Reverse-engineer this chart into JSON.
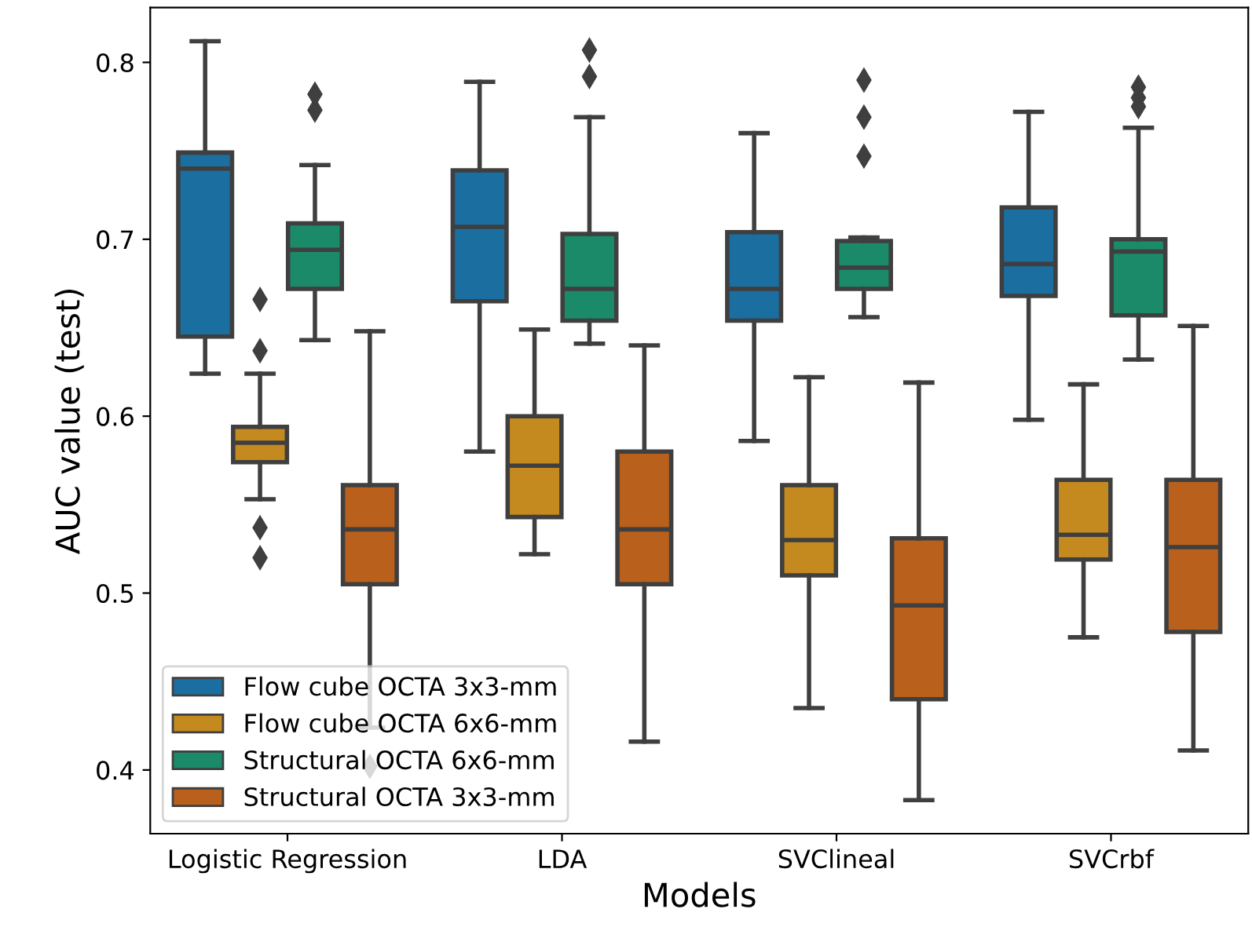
{
  "chart_data": {
    "type": "box",
    "xlabel": "Models",
    "ylabel": "AUC value (test)",
    "categories": [
      "Logistic Regression",
      "LDA",
      "SVClineal",
      "SVCrbf"
    ],
    "ylim": [
      0.364,
      0.831
    ],
    "yticks": [
      0.4,
      0.5,
      0.6,
      0.7,
      0.8
    ],
    "legend": "bottom left",
    "marker": "diamond",
    "grid": false,
    "series": [
      {
        "name": "Flow cube OCTA 3x3-mm",
        "color": "#1a6ea0",
        "boxes": [
          {
            "low": 0.624,
            "q1": 0.645,
            "median": 0.74,
            "q3": 0.749,
            "high": 0.812
          },
          {
            "low": 0.58,
            "q1": 0.665,
            "median": 0.707,
            "q3": 0.739,
            "high": 0.789
          },
          {
            "low": 0.586,
            "q1": 0.654,
            "median": 0.672,
            "q3": 0.704,
            "high": 0.76
          },
          {
            "low": 0.598,
            "q1": 0.668,
            "median": 0.686,
            "q3": 0.718,
            "high": 0.772
          }
        ]
      },
      {
        "name": "Flow cube OCTA 6x6-mm",
        "color": "#c4891f",
        "boxes": [
          {
            "low": 0.553,
            "q1": 0.574,
            "median": 0.585,
            "q3": 0.594,
            "high": 0.624,
            "outliers": [
              0.666,
              0.637,
              0.537,
              0.52
            ]
          },
          {
            "low": 0.522,
            "q1": 0.543,
            "median": 0.572,
            "q3": 0.6,
            "high": 0.649
          },
          {
            "low": 0.435,
            "q1": 0.51,
            "median": 0.53,
            "q3": 0.561,
            "high": 0.622
          },
          {
            "low": 0.475,
            "q1": 0.519,
            "median": 0.533,
            "q3": 0.564,
            "high": 0.618
          }
        ]
      },
      {
        "name": "Structural OCTA 6x6-mm",
        "color": "#1a8a68",
        "boxes": [
          {
            "low": 0.643,
            "q1": 0.672,
            "median": 0.694,
            "q3": 0.709,
            "high": 0.742,
            "outliers": [
              0.782,
              0.773
            ]
          },
          {
            "low": 0.641,
            "q1": 0.654,
            "median": 0.672,
            "q3": 0.703,
            "high": 0.769,
            "outliers": [
              0.807,
              0.792
            ]
          },
          {
            "low": 0.656,
            "q1": 0.672,
            "median": 0.684,
            "q3": 0.699,
            "high": 0.701,
            "outliers": [
              0.79,
              0.769,
              0.747
            ]
          },
          {
            "low": 0.632,
            "q1": 0.657,
            "median": 0.693,
            "q3": 0.7,
            "high": 0.763,
            "outliers": [
              0.786,
              0.78,
              0.775
            ]
          }
        ]
      },
      {
        "name": "Structural OCTA 3x3-mm",
        "color": "#b9601c",
        "boxes": [
          {
            "low": 0.424,
            "q1": 0.505,
            "median": 0.536,
            "q3": 0.561,
            "high": 0.648,
            "outliers": [
              0.402
            ]
          },
          {
            "low": 0.416,
            "q1": 0.505,
            "median": 0.536,
            "q3": 0.58,
            "high": 0.64
          },
          {
            "low": 0.383,
            "q1": 0.44,
            "median": 0.493,
            "q3": 0.531,
            "high": 0.619
          },
          {
            "low": 0.411,
            "q1": 0.478,
            "median": 0.526,
            "q3": 0.564,
            "high": 0.651
          }
        ]
      }
    ]
  }
}
